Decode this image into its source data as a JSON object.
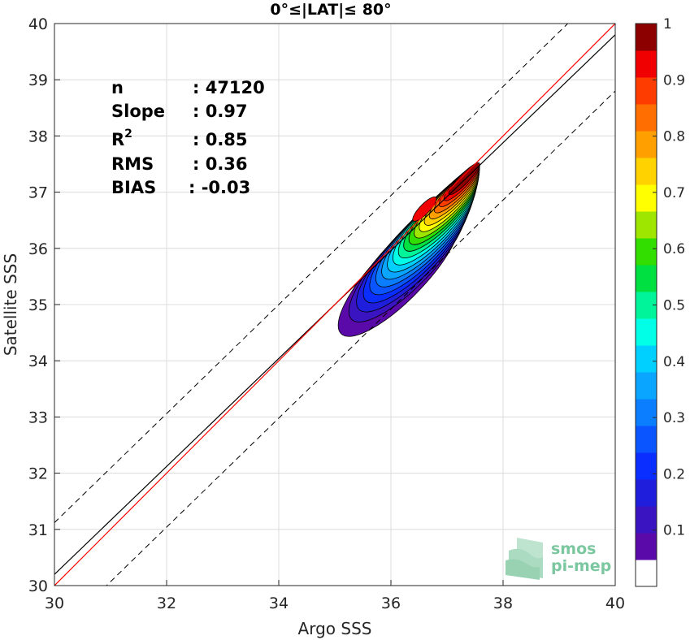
{
  "chart_data": {
    "type": "contour-scatter",
    "title": "0°≤|LAT|≤ 80°",
    "xlabel": "Argo SSS",
    "ylabel": "Satellite SSS",
    "xlim": [
      30,
      40
    ],
    "ylim": [
      30,
      40
    ],
    "xticks": [
      "30",
      "32",
      "34",
      "36",
      "38",
      "40"
    ],
    "yticks": [
      "30",
      "31",
      "32",
      "33",
      "34",
      "35",
      "36",
      "37",
      "38",
      "39",
      "40"
    ],
    "grid": true,
    "stats": [
      {
        "label": "n",
        "value": ": 47120"
      },
      {
        "label": "Slope",
        "value": ": 0.97"
      },
      {
        "label": "R",
        "sup": "2",
        "value": ": 0.85"
      },
      {
        "label": "RMS",
        "value": ": 0.36"
      },
      {
        "label": "BIAS",
        "value": ": -0.03"
      }
    ],
    "identity_line": {
      "color": "#ff0000",
      "x": [
        30,
        40
      ],
      "y": [
        30,
        40
      ]
    },
    "fit_line": {
      "color": "#000000",
      "x": [
        30,
        40
      ],
      "y": [
        30.2,
        39.8
      ]
    },
    "upper_bound": {
      "style": "dashed",
      "x": [
        30,
        40
      ],
      "y": [
        31.12,
        40.82
      ]
    },
    "lower_bound": {
      "style": "dashed",
      "x": [
        30,
        40
      ],
      "y": [
        29.1,
        38.8
      ]
    },
    "density_peak": [
      37.35,
      37.3
    ],
    "density_major_axis": [
      36.6,
      36.7
    ],
    "colorbar": {
      "levels": [
        0,
        0.05,
        0.1,
        0.15,
        0.2,
        0.25,
        0.3,
        0.35,
        0.4,
        0.45,
        0.5,
        0.55,
        0.6,
        0.65,
        0.7,
        0.75,
        0.8,
        0.85,
        0.9,
        0.95,
        1
      ],
      "colors": [
        "#ffffff",
        "#5a0aa8",
        "#3a14c0",
        "#1e1edc",
        "#0a2eff",
        "#0a55ff",
        "#0a7eff",
        "#0aa5ff",
        "#00d0ff",
        "#00ffe6",
        "#00f59a",
        "#00e040",
        "#32dd00",
        "#9ee600",
        "#ffff00",
        "#ffd200",
        "#ffa000",
        "#ff6e00",
        "#ff3c00",
        "#f00000",
        "#8c0000"
      ],
      "ticks": [
        "0.1",
        "0.2",
        "0.3",
        "0.4",
        "0.5",
        "0.6",
        "0.7",
        "0.8",
        "0.9",
        "1"
      ]
    },
    "logo": [
      "smos",
      "pi-mep"
    ]
  }
}
